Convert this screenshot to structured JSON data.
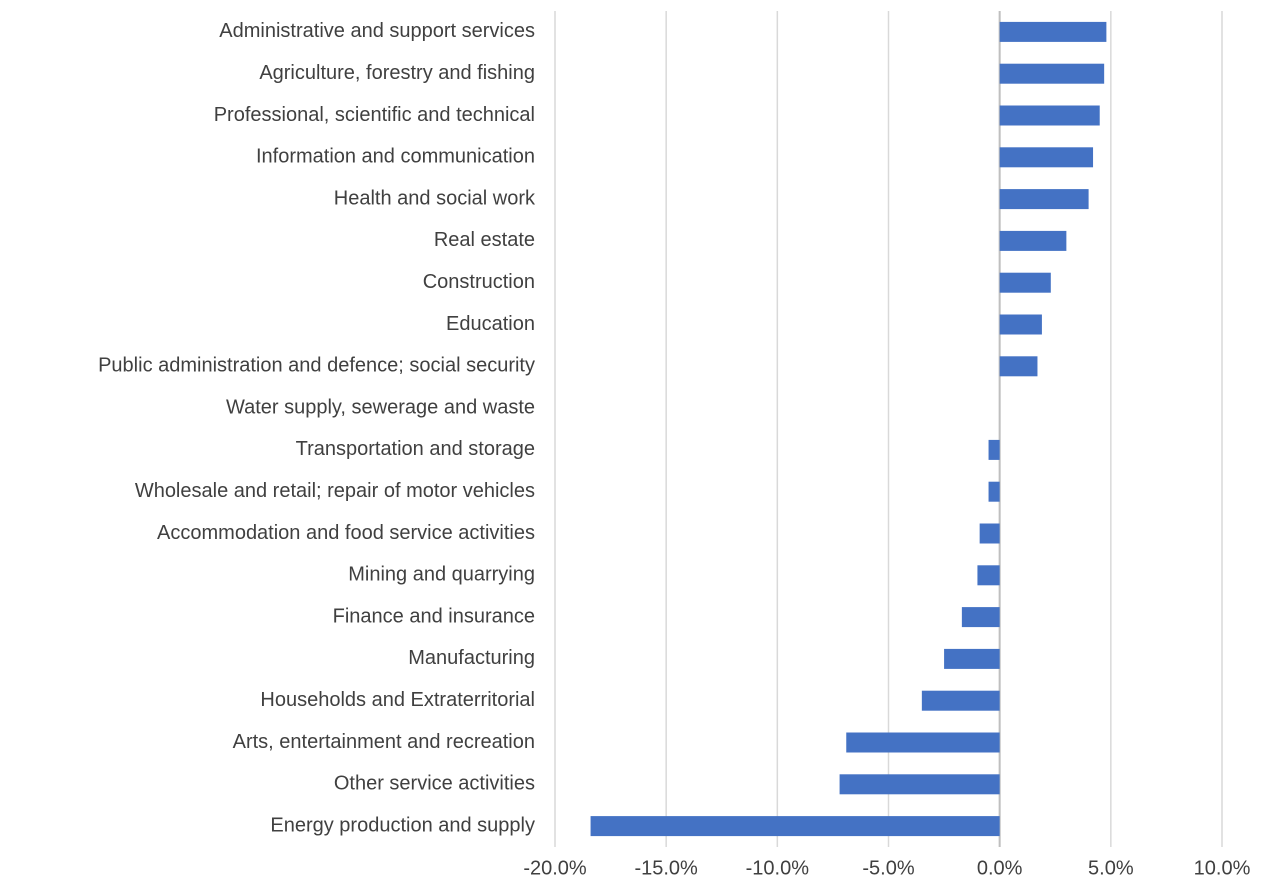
{
  "chart_data": {
    "type": "hbar",
    "categories": [
      "Administrative and support services",
      "Agriculture, forestry and fishing",
      "Professional, scientific and technical",
      "Information and communication",
      "Health and social work",
      "Real estate",
      "Construction",
      "Education",
      "Public administration and defence; social security",
      "Water supply, sewerage and waste",
      "Transportation and storage",
      "Wholesale and retail; repair of motor vehicles",
      "Accommodation and food service activities",
      "Mining and quarrying",
      "Finance and insurance",
      "Manufacturing",
      "Households and Extraterritorial",
      "Arts, entertainment and recreation",
      "Other service activities",
      "Energy production and supply"
    ],
    "values": [
      4.8,
      4.7,
      4.5,
      4.2,
      4.0,
      3.0,
      2.3,
      1.9,
      1.7,
      0,
      -0.5,
      -0.5,
      -0.9,
      -1.0,
      -1.7,
      -2.5,
      -3.5,
      -6.9,
      -7.2,
      -18.4
    ],
    "color": "#4472c4",
    "xlim": [
      -20,
      10
    ],
    "xticks": [
      {
        "value": -20,
        "label": "-20.0%"
      },
      {
        "value": -15,
        "label": "-15.0%"
      },
      {
        "value": -10,
        "label": "-10.0%"
      },
      {
        "value": -5,
        "label": "-5.0%"
      },
      {
        "value": 0,
        "label": "0.0%"
      },
      {
        "value": 5,
        "label": "5.0%"
      },
      {
        "value": 10,
        "label": "10.0%"
      }
    ],
    "grid": true
  }
}
